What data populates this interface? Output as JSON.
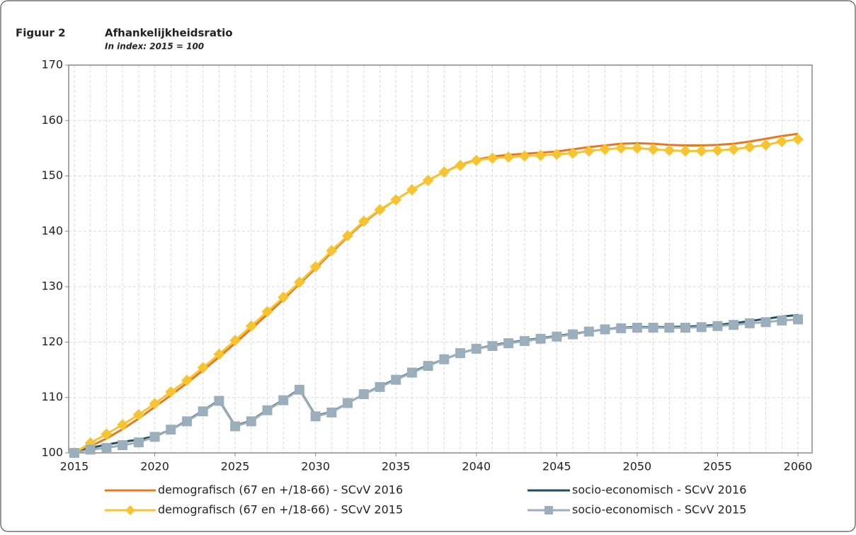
{
  "chart_data": {
    "type": "line",
    "figure_label": "Figuur 2",
    "title": "Afhankelijkheidsratio",
    "subtitle": "In index: 2015 = 100",
    "x": [
      2015,
      2016,
      2017,
      2018,
      2019,
      2020,
      2021,
      2022,
      2023,
      2024,
      2025,
      2026,
      2027,
      2028,
      2029,
      2030,
      2031,
      2032,
      2033,
      2034,
      2035,
      2036,
      2037,
      2038,
      2039,
      2040,
      2041,
      2042,
      2043,
      2044,
      2045,
      2046,
      2047,
      2048,
      2049,
      2050,
      2051,
      2052,
      2053,
      2054,
      2055,
      2056,
      2057,
      2058,
      2059,
      2060
    ],
    "xlim": [
      2015,
      2060
    ],
    "xticks": [
      2015,
      2020,
      2025,
      2030,
      2035,
      2040,
      2045,
      2050,
      2055,
      2060
    ],
    "ylim": [
      100,
      170
    ],
    "yticks": [
      100,
      110,
      120,
      130,
      140,
      150,
      160,
      170
    ],
    "grid": true,
    "legend_position": "bottom",
    "series": [
      {
        "name": "demografisch (67 en +/18-66) - SCvV 2016",
        "color": "#e87722",
        "marker": "none",
        "values": [
          100,
          101.2,
          102.6,
          104.3,
          106.2,
          108.3,
          110.4,
          112.6,
          114.9,
          117.3,
          119.8,
          122.4,
          125.0,
          127.7,
          130.5,
          133.3,
          136.2,
          139.0,
          141.6,
          143.8,
          145.7,
          147.5,
          149.2,
          150.7,
          152.0,
          152.9,
          153.5,
          153.8,
          154.0,
          154.2,
          154.4,
          154.8,
          155.2,
          155.5,
          155.8,
          155.9,
          155.8,
          155.6,
          155.5,
          155.5,
          155.6,
          155.8,
          156.2,
          156.7,
          157.2,
          157.6
        ]
      },
      {
        "name": "socio-economisch - SCvV 2016",
        "color": "#1f4e5f",
        "marker": "none",
        "values": [
          100,
          100.9,
          101.5,
          102.0,
          102.4,
          103.0,
          104.2,
          105.8,
          107.6,
          109.5,
          104.9,
          105.8,
          107.8,
          109.6,
          111.5,
          106.7,
          107.4,
          109.0,
          110.6,
          112.0,
          113.3,
          114.6,
          115.8,
          116.9,
          118.0,
          118.8,
          119.4,
          119.9,
          120.3,
          120.7,
          121.1,
          121.5,
          121.9,
          122.3,
          122.6,
          122.7,
          122.7,
          122.7,
          122.8,
          122.9,
          123.1,
          123.4,
          123.8,
          124.2,
          124.6,
          124.9
        ]
      },
      {
        "name": "demografisch (67 en +/18-66) - SCvV 2015",
        "color": "#f7c431",
        "marker": "diamond",
        "values": [
          100,
          101.8,
          103.4,
          105.1,
          106.9,
          108.9,
          111.0,
          113.1,
          115.4,
          117.8,
          120.3,
          122.9,
          125.5,
          128.1,
          130.8,
          133.6,
          136.5,
          139.2,
          141.8,
          143.9,
          145.7,
          147.5,
          149.2,
          150.7,
          151.9,
          152.8,
          153.2,
          153.4,
          153.6,
          153.7,
          153.9,
          154.1,
          154.5,
          154.8,
          155.0,
          155.0,
          154.8,
          154.6,
          154.5,
          154.5,
          154.6,
          154.8,
          155.2,
          155.6,
          156.2,
          156.6
        ]
      },
      {
        "name": "socio-economisch - SCvV 2015",
        "color": "#9aaebb",
        "marker": "square",
        "values": [
          100,
          100.6,
          100.9,
          101.4,
          101.9,
          102.9,
          104.2,
          105.7,
          107.5,
          109.4,
          104.8,
          105.7,
          107.7,
          109.5,
          111.4,
          106.6,
          107.3,
          109.0,
          110.6,
          111.9,
          113.2,
          114.5,
          115.7,
          116.9,
          118.0,
          118.8,
          119.3,
          119.8,
          120.2,
          120.6,
          121.0,
          121.4,
          121.9,
          122.3,
          122.5,
          122.6,
          122.6,
          122.6,
          122.6,
          122.7,
          122.9,
          123.1,
          123.4,
          123.6,
          123.9,
          124.1
        ]
      }
    ]
  }
}
